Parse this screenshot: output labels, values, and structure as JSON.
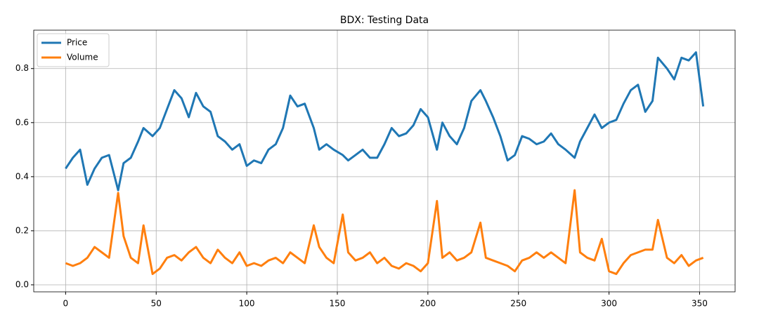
{
  "chart_data": {
    "type": "line",
    "title": "BDX: Testing Data",
    "x": [
      0,
      4,
      8,
      12,
      16,
      20,
      24,
      29,
      32,
      36,
      40,
      43,
      48,
      52,
      56,
      60,
      64,
      68,
      72,
      76,
      80,
      84,
      88,
      92,
      96,
      100,
      104,
      108,
      112,
      116,
      120,
      124,
      128,
      132,
      137,
      140,
      144,
      148,
      153,
      156,
      160,
      164,
      168,
      172,
      176,
      180,
      184,
      188,
      192,
      196,
      200,
      205,
      208,
      212,
      216,
      220,
      224,
      229,
      232,
      236,
      240,
      244,
      248,
      252,
      256,
      260,
      264,
      268,
      272,
      276,
      281,
      284,
      288,
      292,
      296,
      300,
      304,
      308,
      312,
      316,
      320,
      324,
      327,
      332,
      336,
      340,
      344,
      348,
      352
    ],
    "series": [
      {
        "name": "Price",
        "color": "#1f77b4",
        "values": [
          0.43,
          0.47,
          0.5,
          0.37,
          0.43,
          0.47,
          0.48,
          0.35,
          0.45,
          0.47,
          0.53,
          0.58,
          0.55,
          0.58,
          0.65,
          0.72,
          0.69,
          0.62,
          0.71,
          0.66,
          0.64,
          0.55,
          0.53,
          0.5,
          0.52,
          0.44,
          0.46,
          0.45,
          0.5,
          0.52,
          0.58,
          0.7,
          0.66,
          0.67,
          0.58,
          0.5,
          0.52,
          0.5,
          0.48,
          0.46,
          0.48,
          0.5,
          0.47,
          0.47,
          0.52,
          0.58,
          0.55,
          0.56,
          0.59,
          0.65,
          0.62,
          0.5,
          0.6,
          0.55,
          0.52,
          0.58,
          0.68,
          0.72,
          0.68,
          0.62,
          0.55,
          0.46,
          0.48,
          0.55,
          0.54,
          0.52,
          0.53,
          0.56,
          0.52,
          0.5,
          0.47,
          0.53,
          0.58,
          0.63,
          0.58,
          0.6,
          0.61,
          0.67,
          0.72,
          0.74,
          0.64,
          0.68,
          0.84,
          0.8,
          0.76,
          0.84,
          0.83,
          0.86,
          0.66
        ]
      },
      {
        "name": "Volume",
        "color": "#ff7f0e",
        "values": [
          0.08,
          0.07,
          0.08,
          0.1,
          0.14,
          0.12,
          0.1,
          0.34,
          0.18,
          0.1,
          0.08,
          0.22,
          0.04,
          0.06,
          0.1,
          0.11,
          0.09,
          0.12,
          0.14,
          0.1,
          0.08,
          0.13,
          0.1,
          0.08,
          0.12,
          0.07,
          0.08,
          0.07,
          0.09,
          0.1,
          0.08,
          0.12,
          0.1,
          0.08,
          0.22,
          0.14,
          0.1,
          0.08,
          0.26,
          0.12,
          0.09,
          0.1,
          0.12,
          0.08,
          0.1,
          0.07,
          0.06,
          0.08,
          0.07,
          0.05,
          0.08,
          0.31,
          0.1,
          0.12,
          0.09,
          0.1,
          0.12,
          0.23,
          0.1,
          0.09,
          0.08,
          0.07,
          0.05,
          0.09,
          0.1,
          0.12,
          0.1,
          0.12,
          0.1,
          0.08,
          0.35,
          0.12,
          0.1,
          0.09,
          0.17,
          0.05,
          0.04,
          0.08,
          0.11,
          0.12,
          0.13,
          0.13,
          0.24,
          0.1,
          0.08,
          0.11,
          0.07,
          0.09,
          0.1
        ]
      }
    ],
    "xlim": [
      -17.6,
      369.6
    ],
    "ylim": [
      -0.026,
      0.942
    ],
    "xticks": [
      0,
      50,
      100,
      150,
      200,
      250,
      300,
      350
    ],
    "yticks": [
      {
        "value": 0,
        "label": "0.0"
      },
      0.2,
      0.4,
      0.6,
      0.8
    ],
    "grid": true,
    "legend": "upper left"
  }
}
